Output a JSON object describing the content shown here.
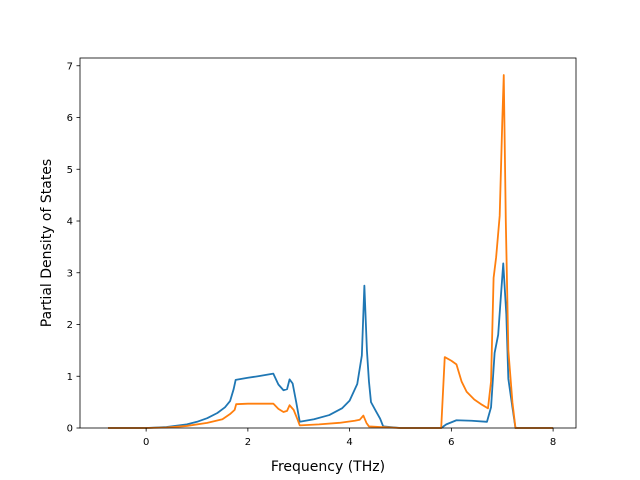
{
  "chart_data": {
    "type": "line",
    "xlabel": "Frequency (THz)",
    "ylabel": "Partial Density of States",
    "xlim": [
      -1.3,
      8.45
    ],
    "ylim": [
      0,
      7.15
    ],
    "xticks": [
      0,
      2,
      4,
      6,
      8
    ],
    "yticks": [
      0,
      1,
      2,
      3,
      4,
      5,
      6,
      7
    ],
    "grid": false,
    "legend": "none",
    "series": [
      {
        "color": "#1f77b4",
        "points": [
          [
            -0.75,
            0.0
          ],
          [
            0.0,
            0.0
          ],
          [
            0.4,
            0.02
          ],
          [
            0.8,
            0.07
          ],
          [
            1.0,
            0.12
          ],
          [
            1.2,
            0.19
          ],
          [
            1.4,
            0.29
          ],
          [
            1.55,
            0.4
          ],
          [
            1.65,
            0.52
          ],
          [
            1.72,
            0.75
          ],
          [
            1.76,
            0.93
          ],
          [
            2.0,
            0.97
          ],
          [
            2.2,
            1.0
          ],
          [
            2.5,
            1.05
          ],
          [
            2.6,
            0.84
          ],
          [
            2.7,
            0.73
          ],
          [
            2.77,
            0.75
          ],
          [
            2.82,
            0.94
          ],
          [
            2.88,
            0.86
          ],
          [
            2.95,
            0.5
          ],
          [
            3.02,
            0.12
          ],
          [
            3.3,
            0.17
          ],
          [
            3.6,
            0.25
          ],
          [
            3.85,
            0.38
          ],
          [
            4.0,
            0.53
          ],
          [
            4.15,
            0.85
          ],
          [
            4.24,
            1.4
          ],
          [
            4.29,
            2.75
          ],
          [
            4.34,
            1.5
          ],
          [
            4.38,
            0.9
          ],
          [
            4.42,
            0.5
          ],
          [
            4.52,
            0.32
          ],
          [
            4.6,
            0.18
          ],
          [
            4.66,
            0.03
          ],
          [
            5.0,
            0.0
          ],
          [
            5.8,
            0.0
          ],
          [
            5.9,
            0.07
          ],
          [
            6.1,
            0.15
          ],
          [
            6.4,
            0.14
          ],
          [
            6.7,
            0.12
          ],
          [
            6.78,
            0.4
          ],
          [
            6.85,
            1.45
          ],
          [
            6.92,
            1.8
          ],
          [
            6.97,
            2.5
          ],
          [
            7.02,
            3.18
          ],
          [
            7.08,
            2.2
          ],
          [
            7.12,
            0.95
          ],
          [
            7.2,
            0.4
          ],
          [
            7.26,
            0.0
          ],
          [
            8.0,
            0.0
          ]
        ]
      },
      {
        "color": "#ff7f0e",
        "points": [
          [
            -0.75,
            0.0
          ],
          [
            0.0,
            0.0
          ],
          [
            0.4,
            0.01
          ],
          [
            0.8,
            0.04
          ],
          [
            1.2,
            0.1
          ],
          [
            1.5,
            0.17
          ],
          [
            1.65,
            0.27
          ],
          [
            1.74,
            0.35
          ],
          [
            1.77,
            0.46
          ],
          [
            2.0,
            0.47
          ],
          [
            2.5,
            0.47
          ],
          [
            2.6,
            0.37
          ],
          [
            2.7,
            0.31
          ],
          [
            2.77,
            0.33
          ],
          [
            2.82,
            0.44
          ],
          [
            2.9,
            0.35
          ],
          [
            2.97,
            0.18
          ],
          [
            3.02,
            0.05
          ],
          [
            3.4,
            0.07
          ],
          [
            3.8,
            0.1
          ],
          [
            4.1,
            0.14
          ],
          [
            4.2,
            0.16
          ],
          [
            4.27,
            0.24
          ],
          [
            4.33,
            0.1
          ],
          [
            4.38,
            0.03
          ],
          [
            5.0,
            0.0
          ],
          [
            5.8,
            0.0
          ],
          [
            5.87,
            1.37
          ],
          [
            6.0,
            1.3
          ],
          [
            6.1,
            1.23
          ],
          [
            6.2,
            0.9
          ],
          [
            6.3,
            0.7
          ],
          [
            6.45,
            0.55
          ],
          [
            6.6,
            0.45
          ],
          [
            6.72,
            0.38
          ],
          [
            6.78,
            0.9
          ],
          [
            6.83,
            2.9
          ],
          [
            6.88,
            3.3
          ],
          [
            6.95,
            4.1
          ],
          [
            7.0,
            5.9
          ],
          [
            7.03,
            6.82
          ],
          [
            7.07,
            4.0
          ],
          [
            7.12,
            1.5
          ],
          [
            7.2,
            0.5
          ],
          [
            7.26,
            0.0
          ],
          [
            8.0,
            0.0
          ]
        ]
      }
    ]
  }
}
